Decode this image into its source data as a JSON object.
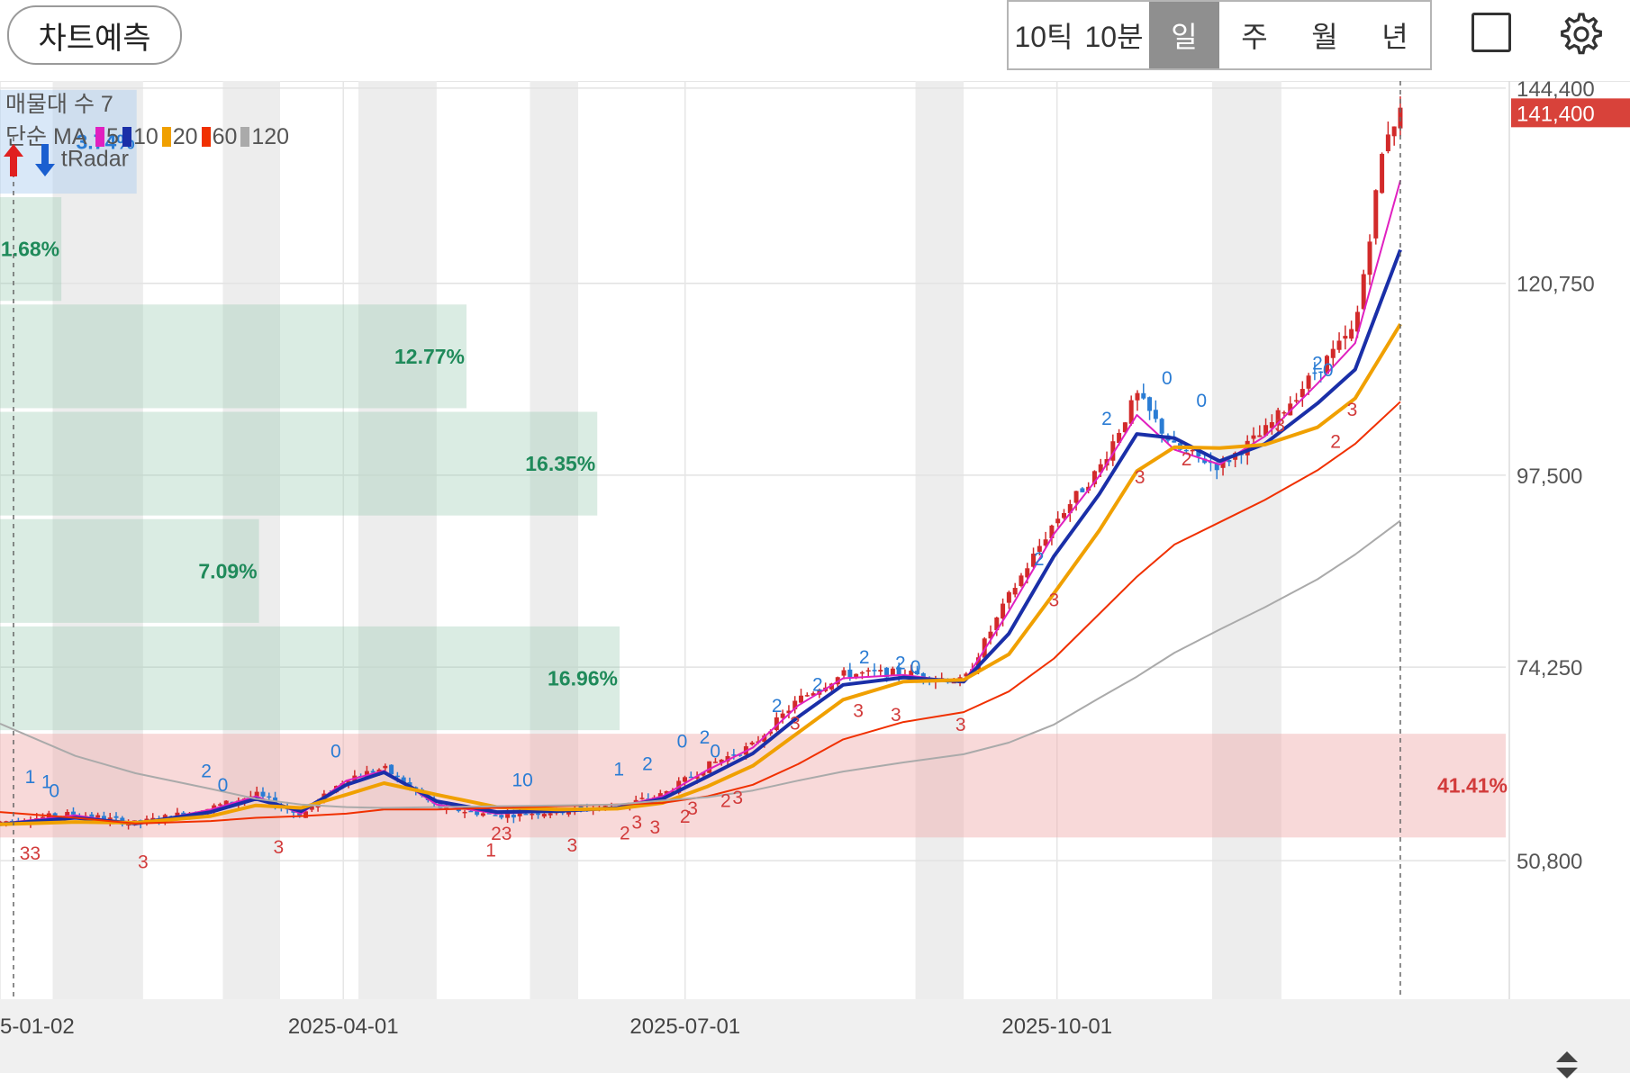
{
  "toolbar": {
    "predict_label": "차트예측",
    "periods": [
      "10틱",
      "10분",
      "일",
      "주",
      "월",
      "년"
    ],
    "active_period": "일",
    "icons": [
      "square-icon",
      "gear-icon"
    ]
  },
  "legend": {
    "volume_profile": "매물대 수 7",
    "ma_title": "단순 MA",
    "ma_items": [
      {
        "label": "5",
        "color": "#e020c0"
      },
      {
        "label": "10",
        "color": "#1a2fa8"
      },
      {
        "label": "20",
        "color": "#f0a000"
      },
      {
        "label": "60",
        "color": "#f03000"
      },
      {
        "label": "120",
        "color": "#aaaaaa"
      }
    ],
    "tradar_label": "tRadar",
    "up_color": "#e02020",
    "down_color": "#1a5fd0"
  },
  "chart_data": {
    "type": "candlestick",
    "x_ticks": [
      "5-01-02",
      "2025-04-01",
      "2025-07-01",
      "2025-10-01"
    ],
    "y_ticks": [
      "144,400",
      "120,750",
      "97,500",
      "74,250",
      "50,800"
    ],
    "y_tick_values": [
      144400,
      120750,
      97500,
      74250,
      50800
    ],
    "ylim": [
      50600,
      144600
    ],
    "current_price_label": "141,400",
    "current_price": 141400,
    "volume_profile": [
      {
        "label": "3.74%",
        "low": 131400,
        "high": 144400,
        "pct": 3.74
      },
      {
        "label": "1.68%",
        "low": 118400,
        "high": 131400,
        "pct": 1.68
      },
      {
        "label": "12.77%",
        "low": 105400,
        "high": 118400,
        "pct": 12.77
      },
      {
        "label": "16.35%",
        "low": 92400,
        "high": 105400,
        "pct": 16.35
      },
      {
        "label": "7.09%",
        "low": 79400,
        "high": 92400,
        "pct": 7.09
      },
      {
        "label": "16.96%",
        "low": 66400,
        "high": 79400,
        "pct": 16.96
      },
      {
        "label": "41.41%",
        "low": 53400,
        "high": 66400,
        "pct": 41.41
      }
    ],
    "price_path": [
      [
        0,
        55500
      ],
      [
        0.05,
        56500
      ],
      [
        0.09,
        55300
      ],
      [
        0.14,
        57200
      ],
      [
        0.17,
        58800
      ],
      [
        0.2,
        56300
      ],
      [
        0.23,
        60800
      ],
      [
        0.255,
        62000
      ],
      [
        0.29,
        57300
      ],
      [
        0.33,
        56300
      ],
      [
        0.37,
        56800
      ],
      [
        0.41,
        57400
      ],
      [
        0.44,
        58800
      ],
      [
        0.47,
        62300
      ],
      [
        0.5,
        64800
      ],
      [
        0.53,
        70300
      ],
      [
        0.56,
        73400
      ],
      [
        0.6,
        73600
      ],
      [
        0.64,
        72500
      ],
      [
        0.67,
        82800
      ],
      [
        0.7,
        91800
      ],
      [
        0.73,
        98300
      ],
      [
        0.755,
        107200
      ],
      [
        0.78,
        100800
      ],
      [
        0.81,
        98600
      ],
      [
        0.84,
        102800
      ],
      [
        0.875,
        110300
      ],
      [
        0.9,
        115300
      ],
      [
        0.92,
        138800
      ],
      [
        0.93,
        141400
      ]
    ],
    "ma_paths": [
      {
        "name": "5",
        "color": "#e020c0",
        "width": 2,
        "points": [
          [
            0,
            55300
          ],
          [
            0.05,
            56300
          ],
          [
            0.09,
            55200
          ],
          [
            0.14,
            57000
          ],
          [
            0.17,
            58600
          ],
          [
            0.2,
            56500
          ],
          [
            0.23,
            60500
          ],
          [
            0.255,
            61700
          ],
          [
            0.29,
            57600
          ],
          [
            0.33,
            56500
          ],
          [
            0.37,
            56800
          ],
          [
            0.41,
            57300
          ],
          [
            0.44,
            58600
          ],
          [
            0.47,
            61800
          ],
          [
            0.5,
            64500
          ],
          [
            0.53,
            69600
          ],
          [
            0.56,
            72900
          ],
          [
            0.6,
            73300
          ],
          [
            0.64,
            72400
          ],
          [
            0.67,
            81000
          ],
          [
            0.7,
            90400
          ],
          [
            0.73,
            97400
          ],
          [
            0.755,
            104800
          ],
          [
            0.78,
            100600
          ],
          [
            0.81,
            98800
          ],
          [
            0.84,
            102200
          ],
          [
            0.875,
            108600
          ],
          [
            0.9,
            113500
          ],
          [
            0.93,
            133200
          ]
        ]
      },
      {
        "name": "10",
        "color": "#1a2fa8",
        "width": 4,
        "points": [
          [
            0,
            55200
          ],
          [
            0.05,
            56000
          ],
          [
            0.09,
            55300
          ],
          [
            0.14,
            56700
          ],
          [
            0.17,
            58300
          ],
          [
            0.2,
            56800
          ],
          [
            0.23,
            60000
          ],
          [
            0.255,
            61500
          ],
          [
            0.29,
            58000
          ],
          [
            0.33,
            56700
          ],
          [
            0.37,
            56800
          ],
          [
            0.41,
            57200
          ],
          [
            0.44,
            58300
          ],
          [
            0.47,
            61000
          ],
          [
            0.5,
            63800
          ],
          [
            0.53,
            68200
          ],
          [
            0.56,
            72100
          ],
          [
            0.6,
            73000
          ],
          [
            0.64,
            72500
          ],
          [
            0.67,
            78300
          ],
          [
            0.7,
            87700
          ],
          [
            0.73,
            95200
          ],
          [
            0.755,
            102500
          ],
          [
            0.78,
            102000
          ],
          [
            0.81,
            99200
          ],
          [
            0.84,
            101300
          ],
          [
            0.875,
            106200
          ],
          [
            0.9,
            110300
          ],
          [
            0.93,
            124800
          ]
        ]
      },
      {
        "name": "20",
        "color": "#f0a000",
        "width": 4,
        "points": [
          [
            0,
            55200
          ],
          [
            0.05,
            55500
          ],
          [
            0.09,
            55400
          ],
          [
            0.14,
            56200
          ],
          [
            0.17,
            57500
          ],
          [
            0.2,
            57200
          ],
          [
            0.23,
            58800
          ],
          [
            0.255,
            60200
          ],
          [
            0.29,
            58800
          ],
          [
            0.33,
            57300
          ],
          [
            0.37,
            57000
          ],
          [
            0.41,
            57100
          ],
          [
            0.44,
            57800
          ],
          [
            0.47,
            59800
          ],
          [
            0.5,
            62300
          ],
          [
            0.53,
            66300
          ],
          [
            0.56,
            70300
          ],
          [
            0.6,
            72500
          ],
          [
            0.64,
            72700
          ],
          [
            0.67,
            75800
          ],
          [
            0.7,
            83200
          ],
          [
            0.73,
            90800
          ],
          [
            0.755,
            98000
          ],
          [
            0.78,
            100900
          ],
          [
            0.81,
            100800
          ],
          [
            0.84,
            101200
          ],
          [
            0.875,
            103300
          ],
          [
            0.9,
            106800
          ],
          [
            0.93,
            115800
          ]
        ]
      },
      {
        "name": "60",
        "color": "#f03000",
        "width": 2,
        "points": [
          [
            0,
            56700
          ],
          [
            0.05,
            56000
          ],
          [
            0.09,
            55300
          ],
          [
            0.14,
            55600
          ],
          [
            0.17,
            56000
          ],
          [
            0.2,
            56200
          ],
          [
            0.23,
            56500
          ],
          [
            0.255,
            57000
          ],
          [
            0.29,
            57000
          ],
          [
            0.33,
            57200
          ],
          [
            0.37,
            57400
          ],
          [
            0.41,
            57600
          ],
          [
            0.44,
            57800
          ],
          [
            0.47,
            58600
          ],
          [
            0.5,
            60000
          ],
          [
            0.53,
            62500
          ],
          [
            0.56,
            65500
          ],
          [
            0.6,
            67600
          ],
          [
            0.64,
            68800
          ],
          [
            0.67,
            71300
          ],
          [
            0.7,
            75300
          ],
          [
            0.73,
            80700
          ],
          [
            0.755,
            85200
          ],
          [
            0.78,
            89100
          ],
          [
            0.81,
            91800
          ],
          [
            0.84,
            94500
          ],
          [
            0.875,
            98100
          ],
          [
            0.9,
            101300
          ],
          [
            0.93,
            106400
          ]
        ]
      },
      {
        "name": "120",
        "color": "#aaaaaa",
        "width": 2,
        "points": [
          [
            0,
            67400
          ],
          [
            0.05,
            63500
          ],
          [
            0.09,
            61400
          ],
          [
            0.14,
            59500
          ],
          [
            0.17,
            58300
          ],
          [
            0.2,
            57600
          ],
          [
            0.23,
            57300
          ],
          [
            0.255,
            57200
          ],
          [
            0.29,
            57300
          ],
          [
            0.33,
            57400
          ],
          [
            0.37,
            57500
          ],
          [
            0.41,
            57600
          ],
          [
            0.44,
            58100
          ],
          [
            0.47,
            58500
          ],
          [
            0.5,
            59300
          ],
          [
            0.53,
            60500
          ],
          [
            0.56,
            61600
          ],
          [
            0.6,
            62700
          ],
          [
            0.64,
            63700
          ],
          [
            0.67,
            65100
          ],
          [
            0.7,
            67300
          ],
          [
            0.73,
            70500
          ],
          [
            0.755,
            73100
          ],
          [
            0.78,
            76000
          ],
          [
            0.81,
            78800
          ],
          [
            0.84,
            81500
          ],
          [
            0.875,
            84900
          ],
          [
            0.9,
            87900
          ],
          [
            0.93,
            92000
          ]
        ]
      }
    ],
    "signal_labels": [
      {
        "text": "1",
        "pos": 0.02,
        "price": 60200,
        "color": "blue"
      },
      {
        "text": "1",
        "pos": 0.031,
        "price": 59600,
        "color": "blue"
      },
      {
        "text": "0",
        "pos": 0.036,
        "price": 58500,
        "color": "blue"
      },
      {
        "text": "33",
        "pos": 0.02,
        "price": 50900,
        "color": "red"
      },
      {
        "text": "3",
        "pos": 0.095,
        "price": 49900,
        "color": "red"
      },
      {
        "text": "2",
        "pos": 0.137,
        "price": 60900,
        "color": "blue"
      },
      {
        "text": "0",
        "pos": 0.148,
        "price": 59200,
        "color": "blue"
      },
      {
        "text": "3",
        "pos": 0.185,
        "price": 51700,
        "color": "red"
      },
      {
        "text": "0",
        "pos": 0.223,
        "price": 63300,
        "color": "blue"
      },
      {
        "text": "1",
        "pos": 0.326,
        "price": 51300,
        "color": "red"
      },
      {
        "text": "23",
        "pos": 0.333,
        "price": 53300,
        "color": "red"
      },
      {
        "text": "10",
        "pos": 0.347,
        "price": 59800,
        "color": "blue"
      },
      {
        "text": "3",
        "pos": 0.38,
        "price": 51900,
        "color": "red"
      },
      {
        "text": "2",
        "pos": 0.415,
        "price": 53400,
        "color": "red"
      },
      {
        "text": "3",
        "pos": 0.423,
        "price": 54700,
        "color": "red"
      },
      {
        "text": "3",
        "pos": 0.435,
        "price": 54100,
        "color": "red"
      },
      {
        "text": "1",
        "pos": 0.411,
        "price": 61100,
        "color": "blue"
      },
      {
        "text": "2",
        "pos": 0.43,
        "price": 61800,
        "color": "blue"
      },
      {
        "text": "3",
        "pos": 0.46,
        "price": 56400,
        "color": "red"
      },
      {
        "text": "2",
        "pos": 0.455,
        "price": 55400,
        "color": "red"
      },
      {
        "text": "0",
        "pos": 0.453,
        "price": 64500,
        "color": "blue"
      },
      {
        "text": "2",
        "pos": 0.468,
        "price": 65000,
        "color": "blue"
      },
      {
        "text": "0",
        "pos": 0.475,
        "price": 63300,
        "color": "blue"
      },
      {
        "text": "2",
        "pos": 0.482,
        "price": 57300,
        "color": "red"
      },
      {
        "text": "3",
        "pos": 0.49,
        "price": 57700,
        "color": "red"
      },
      {
        "text": "2",
        "pos": 0.516,
        "price": 68800,
        "color": "blue"
      },
      {
        "text": "3",
        "pos": 0.528,
        "price": 66700,
        "color": "red"
      },
      {
        "text": "2",
        "pos": 0.543,
        "price": 71400,
        "color": "blue"
      },
      {
        "text": "2",
        "pos": 0.574,
        "price": 74700,
        "color": "blue"
      },
      {
        "text": "3",
        "pos": 0.57,
        "price": 68200,
        "color": "red"
      },
      {
        "text": "3",
        "pos": 0.595,
        "price": 67700,
        "color": "red"
      },
      {
        "text": "2",
        "pos": 0.598,
        "price": 74000,
        "color": "blue"
      },
      {
        "text": "0",
        "pos": 0.608,
        "price": 73500,
        "color": "blue"
      },
      {
        "text": "3",
        "pos": 0.638,
        "price": 66500,
        "color": "red"
      },
      {
        "text": "2",
        "pos": 0.69,
        "price": 86600,
        "color": "blue"
      },
      {
        "text": "3",
        "pos": 0.7,
        "price": 81600,
        "color": "red"
      },
      {
        "text": "2",
        "pos": 0.735,
        "price": 103600,
        "color": "blue"
      },
      {
        "text": "3",
        "pos": 0.757,
        "price": 96500,
        "color": "red"
      },
      {
        "text": "0",
        "pos": 0.775,
        "price": 108500,
        "color": "blue"
      },
      {
        "text": "2",
        "pos": 0.788,
        "price": 98700,
        "color": "red"
      },
      {
        "text": "0",
        "pos": 0.798,
        "price": 105800,
        "color": "blue"
      },
      {
        "text": "3",
        "pos": 0.85,
        "price": 102800,
        "color": "red"
      },
      {
        "text": "2",
        "pos": 0.875,
        "price": 110300,
        "color": "blue"
      },
      {
        "text": "0",
        "pos": 0.882,
        "price": 109500,
        "color": "blue"
      },
      {
        "text": "2",
        "pos": 0.887,
        "price": 100800,
        "color": "red"
      },
      {
        "text": "3",
        "pos": 0.898,
        "price": 104700,
        "color": "red"
      }
    ],
    "shaded_bands": [
      [
        0.035,
        0.095
      ],
      [
        0.148,
        0.186
      ],
      [
        0.238,
        0.29
      ],
      [
        0.352,
        0.384
      ],
      [
        0.608,
        0.64
      ],
      [
        0.805,
        0.851
      ]
    ],
    "current_marker_pos": 0.93,
    "x_tick_positions": [
      0,
      0.228,
      0.455,
      0.702
    ],
    "grid": true,
    "colors": {
      "up": "#d22a2a",
      "down": "#2a7cd4",
      "price_badge": "#d8423a"
    }
  }
}
